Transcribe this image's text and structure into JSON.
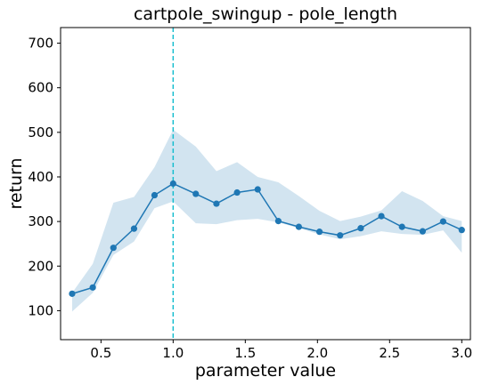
{
  "chart_data": {
    "type": "line",
    "title": "cartpole_swingup - pole_length",
    "xlabel": "parameter value",
    "ylabel": "return",
    "xlim": [
      0.22,
      3.06
    ],
    "ylim": [
      35,
      735
    ],
    "xticks": [
      0.5,
      1.0,
      1.5,
      2.0,
      2.5,
      3.0
    ],
    "xtick_labels": [
      "0.5",
      "1.0",
      "1.5",
      "2.0",
      "2.5",
      "3.0"
    ],
    "yticks": [
      100,
      200,
      300,
      400,
      500,
      600,
      700
    ],
    "ytick_labels": [
      "100",
      "200",
      "300",
      "400",
      "500",
      "600",
      "700"
    ],
    "grid": false,
    "reference_line": {
      "x": 1.0,
      "style": "dashed",
      "color": "#17becf"
    },
    "series": [
      {
        "color": "#1f77b4",
        "x": [
          0.3,
          0.443,
          0.586,
          0.729,
          0.871,
          1.0,
          1.157,
          1.3,
          1.443,
          1.586,
          1.729,
          1.871,
          2.014,
          2.157,
          2.3,
          2.443,
          2.586,
          2.729,
          2.871,
          3.0
        ],
        "y": [
          138,
          152,
          241,
          284,
          359,
          385,
          362,
          340,
          365,
          372,
          301,
          288,
          277,
          269,
          285,
          312,
          288,
          278,
          300,
          281
        ],
        "lower": [
          98,
          140,
          225,
          255,
          330,
          345,
          296,
          294,
          303,
          306,
          298,
          285,
          271,
          260,
          267,
          278,
          272,
          270,
          280,
          230
        ],
        "upper": [
          140,
          205,
          342,
          355,
          422,
          506,
          468,
          413,
          433,
          400,
          388,
          357,
          324,
          301,
          311,
          325,
          368,
          346,
          312,
          301
        ],
        "band_color": "#1f77b4"
      }
    ]
  }
}
